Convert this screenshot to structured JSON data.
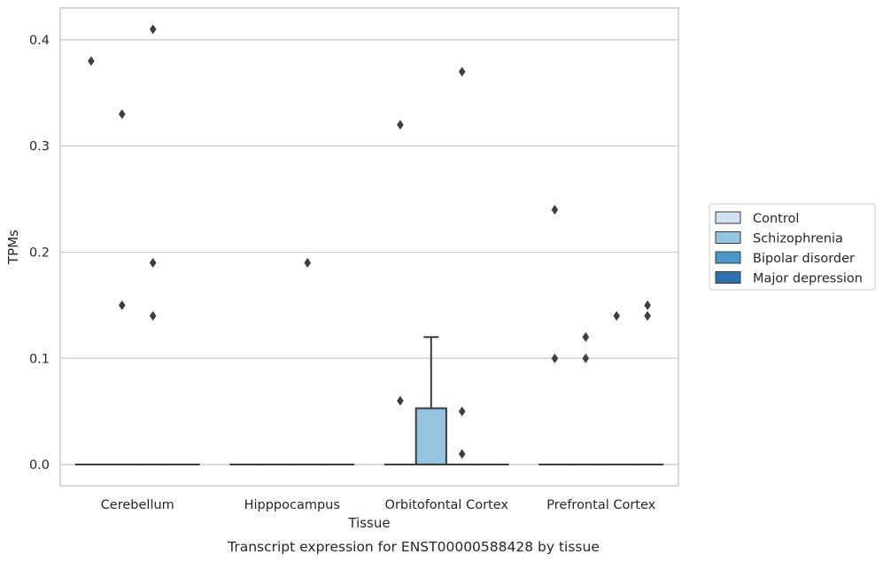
{
  "chart_data": {
    "type": "box",
    "title": "",
    "caption": "Transcript expression for ENST00000588428 by tissue",
    "xlabel": "Tissue",
    "ylabel": "TPMs",
    "ylim": [
      -0.02,
      0.43
    ],
    "yticks": [
      0.0,
      0.1,
      0.2,
      0.3,
      0.4
    ],
    "ytick_labels": [
      "0.0",
      "0.1",
      "0.2",
      "0.3",
      "0.4"
    ],
    "grid": "horizontal",
    "legend_position": "right",
    "categories": [
      "Cerebellum",
      "Hipppocampus",
      "Orbitofontal Cortex",
      "Prefrontal Cortex"
    ],
    "series": [
      {
        "name": "Control",
        "color": "#d0e1f2",
        "boxes": [
          {
            "q1": 0,
            "median": 0,
            "q3": 0,
            "whislo": 0,
            "whishi": 0,
            "fliers": [
              0.38
            ]
          },
          {
            "q1": 0,
            "median": 0,
            "q3": 0,
            "whislo": 0,
            "whishi": 0,
            "fliers": []
          },
          {
            "q1": 0,
            "median": 0,
            "q3": 0,
            "whislo": 0,
            "whishi": 0,
            "fliers": [
              0.32,
              0.06
            ]
          },
          {
            "q1": 0,
            "median": 0,
            "q3": 0,
            "whislo": 0,
            "whishi": 0,
            "fliers": [
              0.24,
              0.1
            ]
          }
        ]
      },
      {
        "name": "Schizophrenia",
        "color": "#94c4df",
        "boxes": [
          {
            "q1": 0,
            "median": 0,
            "q3": 0,
            "whislo": 0,
            "whishi": 0,
            "fliers": [
              0.33,
              0.15
            ]
          },
          {
            "q1": 0,
            "median": 0,
            "q3": 0,
            "whislo": 0,
            "whishi": 0,
            "fliers": []
          },
          {
            "q1": 0,
            "median": 0,
            "q3": 0.053,
            "whislo": 0,
            "whishi": 0.12,
            "fliers": []
          },
          {
            "q1": 0,
            "median": 0,
            "q3": 0,
            "whislo": 0,
            "whishi": 0,
            "fliers": [
              0.12,
              0.1
            ]
          }
        ]
      },
      {
        "name": "Bipolar disorder",
        "color": "#4a98c9",
        "boxes": [
          {
            "q1": 0,
            "median": 0,
            "q3": 0,
            "whislo": 0,
            "whishi": 0,
            "fliers": [
              0.41,
              0.19,
              0.14
            ]
          },
          {
            "q1": 0,
            "median": 0,
            "q3": 0,
            "whislo": 0,
            "whishi": 0,
            "fliers": [
              0.19
            ]
          },
          {
            "q1": 0,
            "median": 0,
            "q3": 0,
            "whislo": 0,
            "whishi": 0,
            "fliers": [
              0.37,
              0.05,
              0.01
            ]
          },
          {
            "q1": 0,
            "median": 0,
            "q3": 0,
            "whislo": 0,
            "whishi": 0,
            "fliers": [
              0.14
            ]
          }
        ]
      },
      {
        "name": "Major depression",
        "color": "#2e6fae",
        "boxes": [
          {
            "q1": 0,
            "median": 0,
            "q3": 0,
            "whislo": 0,
            "whishi": 0,
            "fliers": []
          },
          {
            "q1": 0,
            "median": 0,
            "q3": 0,
            "whislo": 0,
            "whishi": 0,
            "fliers": []
          },
          {
            "q1": 0,
            "median": 0,
            "q3": 0,
            "whislo": 0,
            "whishi": 0,
            "fliers": []
          },
          {
            "q1": 0,
            "median": 0,
            "q3": 0,
            "whislo": 0,
            "whishi": 0,
            "fliers": [
              0.15,
              0.14
            ]
          }
        ]
      }
    ]
  }
}
